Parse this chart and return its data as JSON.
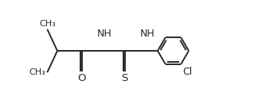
{
  "bg_color": "#ffffff",
  "line_color": "#2a2a2a",
  "line_width": 1.4,
  "font_size": 9.0,
  "figsize": [
    3.24,
    1.31
  ],
  "dpi": 100,
  "xlim": [
    0,
    3.24
  ],
  "ylim": [
    0,
    1.31
  ]
}
